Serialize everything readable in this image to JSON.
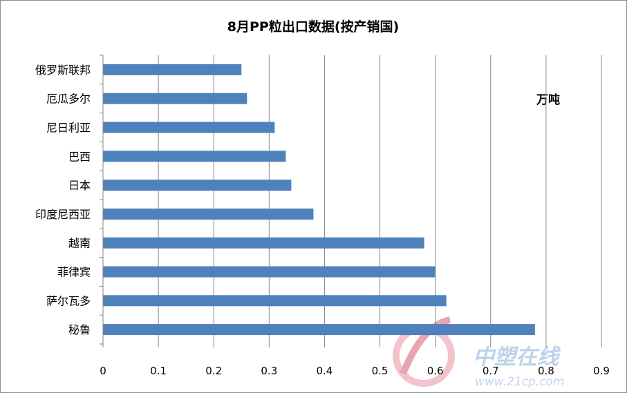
{
  "chart_data": {
    "type": "bar",
    "orientation": "horizontal",
    "title": "8月PP粒出口数据(按产销国)",
    "unit_label": "万吨",
    "categories": [
      "俄罗斯联邦",
      "厄瓜多尔",
      "尼日利亚",
      "巴西",
      "日本",
      "印度尼西亚",
      "越南",
      "菲律宾",
      "萨尔瓦多",
      "秘鲁"
    ],
    "values": [
      0.25,
      0.26,
      0.31,
      0.33,
      0.34,
      0.38,
      0.58,
      0.6,
      0.62,
      0.78
    ],
    "xlim": [
      0,
      0.9
    ],
    "x_ticks": [
      "0",
      "0.1",
      "0.2",
      "0.3",
      "0.4",
      "0.5",
      "0.6",
      "0.7",
      "0.8",
      "0.9"
    ],
    "grid": "vertical",
    "legend": "none",
    "bar_color": "#4f81bd"
  },
  "watermark": {
    "text": "中塑在线",
    "url": "www.21cp.com"
  }
}
